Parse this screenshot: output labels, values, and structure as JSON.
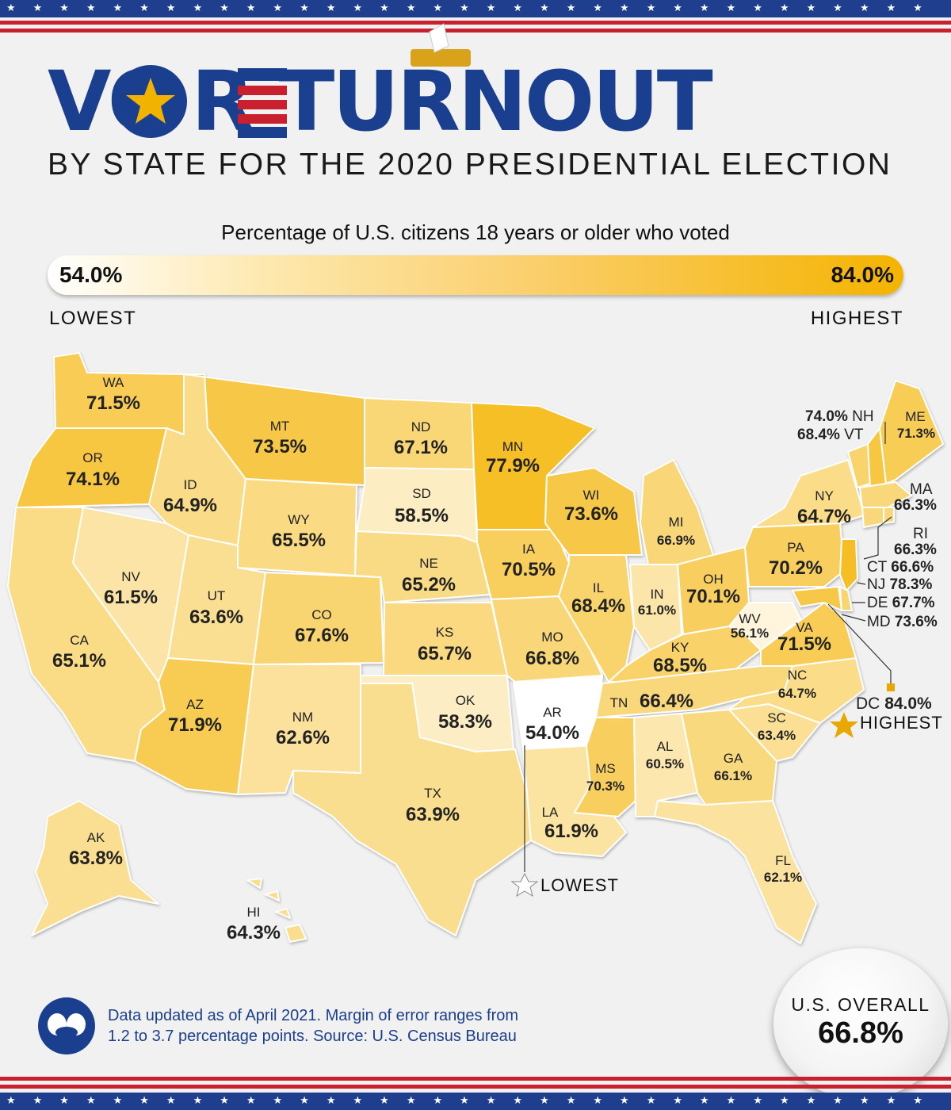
{
  "title": {
    "word1_pre": "VO",
    "word1_post": "R",
    "word2": "TURNOUT",
    "subtitle": "BY STATE FOR THE 2020 PRESIDENTIAL ELECTION"
  },
  "legend": {
    "title": "Percentage of U.S. citizens 18 years or older who voted",
    "min_value": "54.0%",
    "max_value": "84.0%",
    "min_label": "LOWEST",
    "max_label": "HIGHEST",
    "color_low": "#ffffff",
    "color_high": "#f4b300"
  },
  "states": {
    "WA": {
      "abbr": "WA",
      "value": "71.5%",
      "turnout": 71.5
    },
    "OR": {
      "abbr": "OR",
      "value": "74.1%",
      "turnout": 74.1
    },
    "CA": {
      "abbr": "CA",
      "value": "65.1%",
      "turnout": 65.1
    },
    "NV": {
      "abbr": "NV",
      "value": "61.5%",
      "turnout": 61.5
    },
    "ID": {
      "abbr": "ID",
      "value": "64.9%",
      "turnout": 64.9
    },
    "MT": {
      "abbr": "MT",
      "value": "73.5%",
      "turnout": 73.5
    },
    "WY": {
      "abbr": "WY",
      "value": "65.5%",
      "turnout": 65.5
    },
    "UT": {
      "abbr": "UT",
      "value": "63.6%",
      "turnout": 63.6
    },
    "AZ": {
      "abbr": "AZ",
      "value": "71.9%",
      "turnout": 71.9
    },
    "CO": {
      "abbr": "CO",
      "value": "67.6%",
      "turnout": 67.6
    },
    "NM": {
      "abbr": "NM",
      "value": "62.6%",
      "turnout": 62.6
    },
    "ND": {
      "abbr": "ND",
      "value": "67.1%",
      "turnout": 67.1
    },
    "SD": {
      "abbr": "SD",
      "value": "58.5%",
      "turnout": 58.5
    },
    "NE": {
      "abbr": "NE",
      "value": "65.2%",
      "turnout": 65.2
    },
    "KS": {
      "abbr": "KS",
      "value": "65.7%",
      "turnout": 65.7
    },
    "OK": {
      "abbr": "OK",
      "value": "58.3%",
      "turnout": 58.3
    },
    "TX": {
      "abbr": "TX",
      "value": "63.9%",
      "turnout": 63.9
    },
    "MN": {
      "abbr": "MN",
      "value": "77.9%",
      "turnout": 77.9
    },
    "IA": {
      "abbr": "IA",
      "value": "70.5%",
      "turnout": 70.5
    },
    "MO": {
      "abbr": "MO",
      "value": "66.8%",
      "turnout": 66.8
    },
    "AR": {
      "abbr": "AR",
      "value": "54.0%",
      "turnout": 54.0
    },
    "LA": {
      "abbr": "LA",
      "value": "61.9%",
      "turnout": 61.9
    },
    "WI": {
      "abbr": "WI",
      "value": "73.6%",
      "turnout": 73.6
    },
    "IL": {
      "abbr": "IL",
      "value": "68.4%",
      "turnout": 68.4
    },
    "MI": {
      "abbr": "MI",
      "value": "66.9%",
      "turnout": 66.9
    },
    "IN": {
      "abbr": "IN",
      "value": "61.0%",
      "turnout": 61.0
    },
    "OH": {
      "abbr": "OH",
      "value": "70.1%",
      "turnout": 70.1
    },
    "KY": {
      "abbr": "KY",
      "value": "68.5%",
      "turnout": 68.5
    },
    "TN": {
      "abbr": "TN",
      "value": "66.4%",
      "turnout": 66.4
    },
    "MS": {
      "abbr": "MS",
      "value": "70.3%",
      "turnout": 70.3
    },
    "AL": {
      "abbr": "AL",
      "value": "60.5%",
      "turnout": 60.5
    },
    "GA": {
      "abbr": "GA",
      "value": "66.1%",
      "turnout": 66.1
    },
    "FL": {
      "abbr": "FL",
      "value": "62.1%",
      "turnout": 62.1
    },
    "SC": {
      "abbr": "SC",
      "value": "63.4%",
      "turnout": 63.4
    },
    "NC": {
      "abbr": "NC",
      "value": "64.7%",
      "turnout": 64.7
    },
    "VA": {
      "abbr": "VA",
      "value": "71.5%",
      "turnout": 71.5
    },
    "WV": {
      "abbr": "WV",
      "value": "56.1%",
      "turnout": 56.1
    },
    "PA": {
      "abbr": "PA",
      "value": "70.2%",
      "turnout": 70.2
    },
    "NY": {
      "abbr": "NY",
      "value": "64.7%",
      "turnout": 64.7
    },
    "ME": {
      "abbr": "ME",
      "value": "71.3%",
      "turnout": 71.3
    },
    "NH": {
      "abbr": "NH",
      "value": "74.0%",
      "turnout": 74.0
    },
    "VT": {
      "abbr": "VT",
      "value": "68.4%",
      "turnout": 68.4
    },
    "MA": {
      "abbr": "MA",
      "value": "66.3%",
      "turnout": 66.3
    },
    "RI": {
      "abbr": "RI",
      "value": "66.3%",
      "turnout": 66.3
    },
    "CT": {
      "abbr": "CT",
      "value": "66.6%",
      "turnout": 66.6
    },
    "NJ": {
      "abbr": "NJ",
      "value": "78.3%",
      "turnout": 78.3
    },
    "DE": {
      "abbr": "DE",
      "value": "67.7%",
      "turnout": 67.7
    },
    "MD": {
      "abbr": "MD",
      "value": "73.6%",
      "turnout": 73.6
    },
    "DC": {
      "abbr": "DC",
      "value": "84.0%",
      "turnout": 84.0
    },
    "AK": {
      "abbr": "AK",
      "value": "63.8%",
      "turnout": 63.8
    },
    "HI": {
      "abbr": "HI",
      "value": "64.3%",
      "turnout": 64.3
    }
  },
  "callouts": {
    "highest": "HIGHEST",
    "lowest": "LOWEST"
  },
  "footnote": {
    "line1": "Data updated as of April 2021. Margin of error ranges from",
    "line2": "1.2 to 3.7 percentage points. Source: U.S. Census Bureau"
  },
  "overall": {
    "label": "U.S. OVERALL",
    "value": "66.8%"
  },
  "colors": {
    "navy": "#1b3f8f",
    "red": "#c8202f",
    "gold": "#e8a800"
  }
}
